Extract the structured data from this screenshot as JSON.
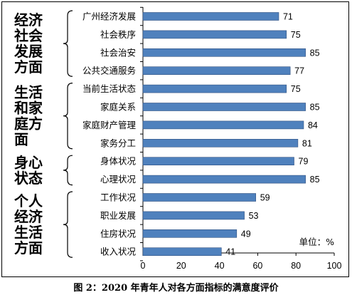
{
  "chart_data": {
    "type": "bar",
    "orientation": "horizontal",
    "title": "图 2：2020 年青年人对各方面指标的满意度评价",
    "unit_label": "单位：%",
    "xlim": [
      0,
      100
    ],
    "x_ticks": [
      "0",
      "20",
      "40",
      "60",
      "80",
      "100"
    ],
    "bar_color": "#4f81bd",
    "groups": [
      {
        "name": "经济社会发展方面",
        "lines": [
          "经济",
          "社会",
          "发展",
          "方面"
        ],
        "categories": [
          "广州经济发展",
          "社会秩序",
          "社会治安",
          "公共交通服务"
        ],
        "values": [
          71,
          75,
          85,
          77
        ]
      },
      {
        "name": "生活和家庭方面",
        "lines": [
          "生活",
          "和家",
          "庭方",
          "面"
        ],
        "categories": [
          "当前生活状态",
          "家庭关系",
          "家庭财产管理",
          "家务分工"
        ],
        "values": [
          75,
          85,
          84,
          81
        ]
      },
      {
        "name": "身心状态",
        "lines": [
          "身心",
          "状态"
        ],
        "categories": [
          "身体状况",
          "心理状况"
        ],
        "values": [
          79,
          85
        ]
      },
      {
        "name": "个人经济生活方面",
        "lines": [
          "个人",
          "经济",
          "生活",
          "方面"
        ],
        "categories": [
          "工作状况",
          "职业发展",
          "住房状况",
          "收入状况"
        ],
        "values": [
          59,
          53,
          49,
          41
        ]
      }
    ]
  }
}
